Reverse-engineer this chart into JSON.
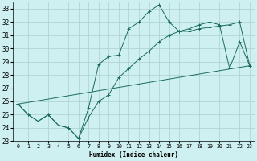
{
  "xlabel": "Humidex (Indice chaleur)",
  "ylabel": "",
  "bg_color": "#cff0f0",
  "grid_color": "#aacece",
  "line_color": "#1a6b5a",
  "xlim": [
    -0.5,
    23.5
  ],
  "ylim": [
    23,
    33.5
  ],
  "yticks": [
    23,
    24,
    25,
    26,
    27,
    28,
    29,
    30,
    31,
    32,
    33
  ],
  "xticks": [
    0,
    1,
    2,
    3,
    4,
    5,
    6,
    7,
    8,
    9,
    10,
    11,
    12,
    13,
    14,
    15,
    16,
    17,
    18,
    19,
    20,
    21,
    22,
    23
  ],
  "series1_x": [
    0,
    1,
    2,
    3,
    4,
    5,
    6,
    7,
    8,
    9,
    10,
    11,
    12,
    13,
    14,
    15,
    16,
    17,
    18,
    19,
    20,
    21,
    22,
    23
  ],
  "series1_y": [
    25.8,
    25.0,
    24.5,
    25.0,
    24.2,
    24.0,
    23.2,
    25.5,
    28.8,
    29.4,
    29.5,
    31.5,
    32.0,
    32.8,
    33.3,
    32.0,
    31.3,
    31.5,
    31.8,
    32.0,
    31.8,
    28.5,
    30.5,
    28.7
  ],
  "series2_x": [
    0,
    1,
    2,
    3,
    4,
    5,
    6,
    7,
    8,
    9,
    10,
    11,
    12,
    13,
    14,
    15,
    16,
    17,
    18,
    19,
    20,
    21,
    22,
    23
  ],
  "series2_y": [
    25.8,
    25.0,
    24.5,
    25.0,
    24.2,
    24.0,
    23.2,
    24.8,
    26.0,
    26.5,
    27.8,
    28.5,
    29.2,
    29.8,
    30.5,
    31.0,
    31.3,
    31.3,
    31.5,
    31.6,
    31.7,
    31.8,
    32.0,
    28.7
  ],
  "series3_x": [
    0,
    23
  ],
  "series3_y": [
    25.8,
    28.7
  ]
}
